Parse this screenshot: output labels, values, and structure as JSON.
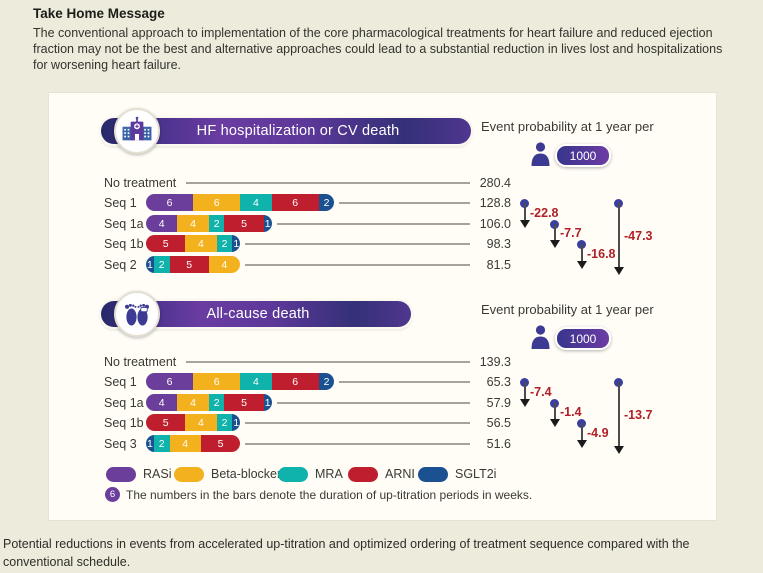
{
  "take_home": {
    "title": "Take Home Message",
    "body": "The conventional approach to implementation of the core pharmacological treatments for heart failure and reduced ejection fraction may not be the best and alternative approaches could lead to a substantial reduction in lives lost and hospitalizations for worsening heart failure."
  },
  "caption": "Potential reductions in events from accelerated up-titration and optimized ordering of treatment sequence compared with the conventional schedule.",
  "colors": {
    "RASi": "#6b3e9b",
    "Beta-blocker": "#f3b11d",
    "MRA": "#0fb3ab",
    "ARNI": "#bf1e2e",
    "SGLT2i": "#1b5191",
    "reduction_label": "#b01f27",
    "arrow_dot": "#3b3f9d"
  },
  "panels": [
    {
      "title": "HF hospitalization or CV death",
      "icon": "hospital-icon",
      "right_heading": "Event probability at 1 year per",
      "unit_badge": "1000"
    },
    {
      "title": "All-cause death",
      "icon": "feet-icon",
      "right_heading": "Event probability at 1 year per",
      "unit_badge": "1000"
    }
  ],
  "chart_data": [
    {
      "type": "bar",
      "title": "HF hospitalization or CV death",
      "ylabel": "Event probability at 1 year per 1000",
      "categories": [
        "No treatment",
        "Seq 1",
        "Seq 1a",
        "Seq 1b",
        "Seq 2"
      ],
      "values": [
        280.4,
        128.8,
        106.0,
        98.3,
        81.5
      ],
      "value_labels": [
        "280.4",
        "128.8",
        "106.0",
        "98.3",
        "81.5"
      ],
      "segments": [
        [],
        [
          {
            "drug": "RASi",
            "weeks": 6
          },
          {
            "drug": "Beta-blocker",
            "weeks": 6
          },
          {
            "drug": "MRA",
            "weeks": 4
          },
          {
            "drug": "ARNI",
            "weeks": 6
          },
          {
            "drug": "SGLT2i",
            "weeks": 2
          }
        ],
        [
          {
            "drug": "RASi",
            "weeks": 4
          },
          {
            "drug": "Beta-blocker",
            "weeks": 4
          },
          {
            "drug": "MRA",
            "weeks": 2
          },
          {
            "drug": "ARNI",
            "weeks": 5
          },
          {
            "drug": "SGLT2i",
            "weeks": 1
          }
        ],
        [
          {
            "drug": "ARNI",
            "weeks": 5
          },
          {
            "drug": "Beta-blocker",
            "weeks": 4
          },
          {
            "drug": "MRA",
            "weeks": 2
          },
          {
            "drug": "SGLT2i",
            "weeks": 1
          }
        ],
        [
          {
            "drug": "SGLT2i",
            "weeks": 1
          },
          {
            "drug": "MRA",
            "weeks": 2
          },
          {
            "drug": "ARNI",
            "weeks": 5
          },
          {
            "drug": "Beta-blocker",
            "weeks": 4
          }
        ]
      ],
      "reductions": [
        {
          "from_index": 1,
          "to_index": 2,
          "delta": -22.8,
          "label": "-22.8"
        },
        {
          "from_index": 2,
          "to_index": 3,
          "delta": -7.7,
          "label": "-7.7"
        },
        {
          "from_index": 3,
          "to_index": 4,
          "delta": -16.8,
          "label": "-16.8"
        },
        {
          "from_index": 1,
          "to_index": 4,
          "delta": -47.3,
          "label": "-47.3"
        }
      ]
    },
    {
      "type": "bar",
      "title": "All-cause death",
      "ylabel": "Event probability at 1 year per 1000",
      "categories": [
        "No treatment",
        "Seq 1",
        "Seq 1a",
        "Seq 1b",
        "Seq 3"
      ],
      "values": [
        139.3,
        65.3,
        57.9,
        56.5,
        51.6
      ],
      "value_labels": [
        "139.3",
        "65.3",
        "57.9",
        "56.5",
        "51.6"
      ],
      "segments": [
        [],
        [
          {
            "drug": "RASi",
            "weeks": 6
          },
          {
            "drug": "Beta-blocker",
            "weeks": 6
          },
          {
            "drug": "MRA",
            "weeks": 4
          },
          {
            "drug": "ARNI",
            "weeks": 6
          },
          {
            "drug": "SGLT2i",
            "weeks": 2
          }
        ],
        [
          {
            "drug": "RASi",
            "weeks": 4
          },
          {
            "drug": "Beta-blocker",
            "weeks": 4
          },
          {
            "drug": "MRA",
            "weeks": 2
          },
          {
            "drug": "ARNI",
            "weeks": 5
          },
          {
            "drug": "SGLT2i",
            "weeks": 1
          }
        ],
        [
          {
            "drug": "ARNI",
            "weeks": 5
          },
          {
            "drug": "Beta-blocker",
            "weeks": 4
          },
          {
            "drug": "MRA",
            "weeks": 2
          },
          {
            "drug": "SGLT2i",
            "weeks": 1
          }
        ],
        [
          {
            "drug": "SGLT2i",
            "weeks": 1
          },
          {
            "drug": "MRA",
            "weeks": 2
          },
          {
            "drug": "Beta-blocker",
            "weeks": 4
          },
          {
            "drug": "ARNI",
            "weeks": 5
          }
        ]
      ],
      "reductions": [
        {
          "from_index": 1,
          "to_index": 2,
          "delta": -7.4,
          "label": "-7.4"
        },
        {
          "from_index": 2,
          "to_index": 3,
          "delta": -1.4,
          "label": "-1.4"
        },
        {
          "from_index": 3,
          "to_index": 4,
          "delta": -4.9,
          "label": "-4.9"
        },
        {
          "from_index": 1,
          "to_index": 4,
          "delta": -13.7,
          "label": "-13.7"
        }
      ]
    }
  ],
  "legend": {
    "items": [
      {
        "drug": "RASi",
        "label": "RASi"
      },
      {
        "drug": "Beta-blocker",
        "label": "Beta-blocker"
      },
      {
        "drug": "MRA",
        "label": "MRA"
      },
      {
        "drug": "ARNI",
        "label": "ARNI"
      },
      {
        "drug": "SGLT2i",
        "label": "SGLT2i"
      }
    ],
    "note_badge": "6",
    "note": "The numbers in the bars denote the duration of up-titration periods in weeks."
  }
}
